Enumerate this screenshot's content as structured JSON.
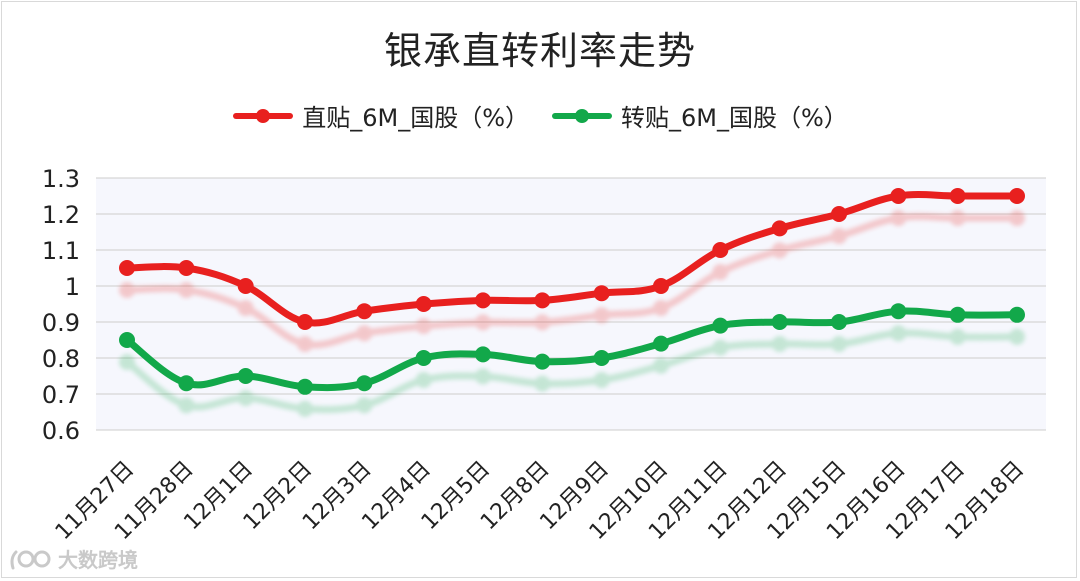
{
  "chart_data": {
    "type": "line",
    "title": "银承直转利率走势",
    "categories": [
      "11月27日",
      "11月28日",
      "12月1日",
      "12月2日",
      "12月3日",
      "12月4日",
      "12月5日",
      "12月8日",
      "12月9日",
      "12月10日",
      "12月11日",
      "12月12日",
      "12月15日",
      "12月16日",
      "12月17日",
      "12月18日"
    ],
    "series": [
      {
        "name": "直贴_6M_国股（%）",
        "color": "#e8201f",
        "values": [
          1.05,
          1.05,
          1.0,
          0.9,
          0.93,
          0.95,
          0.96,
          0.96,
          0.98,
          1.0,
          1.1,
          1.16,
          1.2,
          1.25,
          1.25,
          1.25
        ]
      },
      {
        "name": "转贴_6M_国股（%）",
        "color": "#12a84a",
        "values": [
          0.85,
          0.73,
          0.75,
          0.72,
          0.73,
          0.8,
          0.81,
          0.79,
          0.8,
          0.84,
          0.89,
          0.9,
          0.9,
          0.93,
          0.92,
          0.92
        ]
      }
    ],
    "yticks": [
      "0.6",
      "0.7",
      "0.8",
      "0.9",
      "1",
      "1.1",
      "1.2",
      "1.3"
    ],
    "ylim": [
      0.6,
      1.3
    ],
    "grid": true,
    "legend": "top"
  },
  "watermark": {
    "text": "大数跨境",
    "icon": "logo-icon"
  }
}
